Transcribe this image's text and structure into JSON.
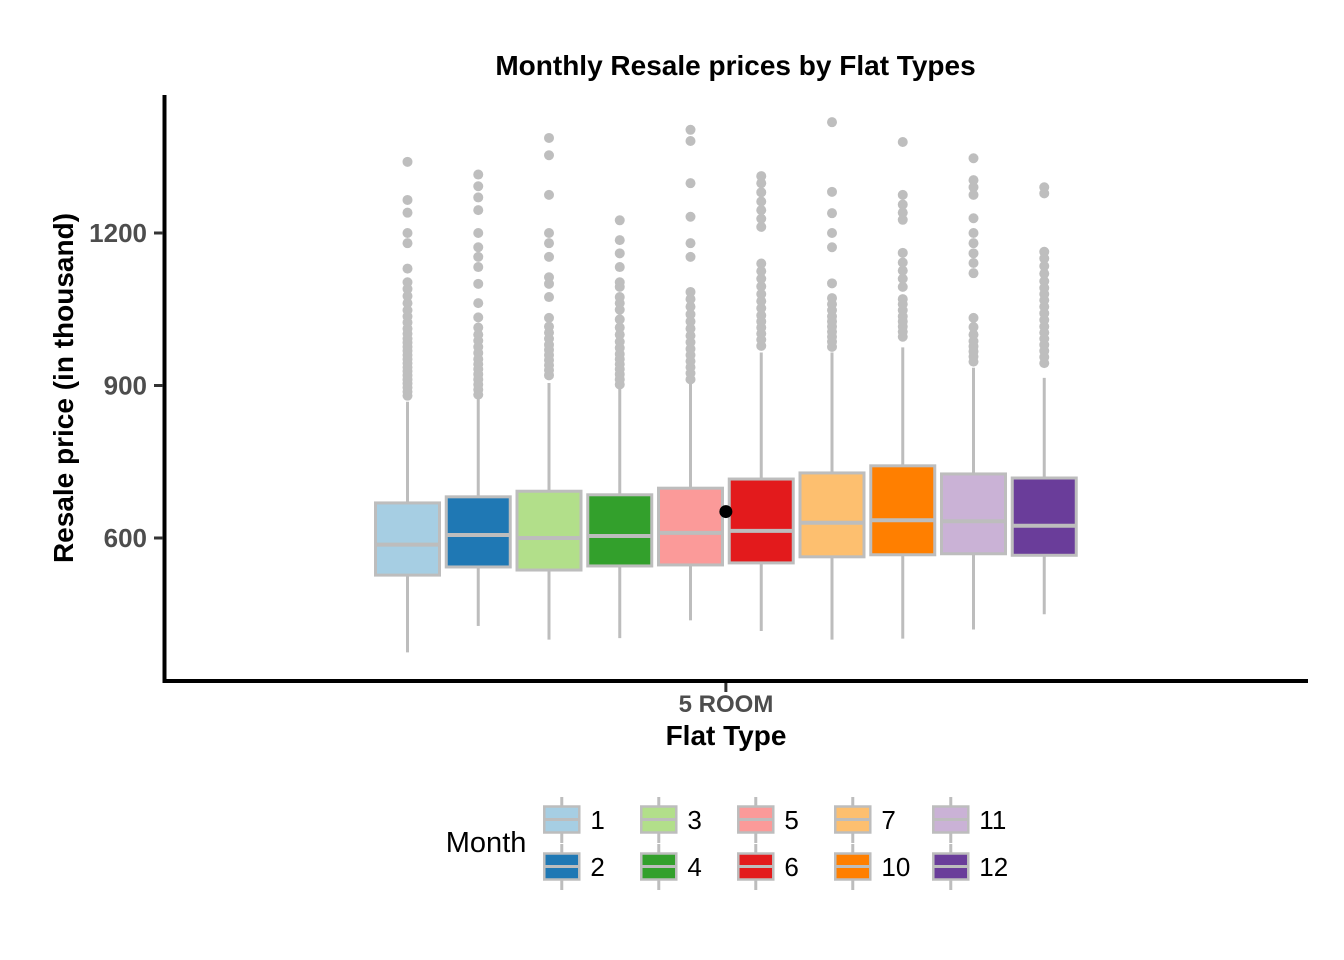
{
  "chart_data": {
    "type": "boxplot",
    "title": "Monthly Resale prices by Flat Types",
    "xlabel": "Flat Type",
    "ylabel": "Resale price (in thousand)",
    "x_category": "5 ROOM",
    "legend_title": "Month",
    "legend_position": "bottom",
    "grid": false,
    "yticks": [
      600,
      900,
      1200
    ],
    "ylim": [
      320,
      1470
    ],
    "styles": {
      "box_border": "#BDBDBD",
      "whisker": "#BDBDBD",
      "median": "#BDBDBD",
      "outlier": "#BEBEBE",
      "axis_line": "#000000",
      "tick_mark": "#333333",
      "tick_text": "#4D4D4D",
      "title_text": "#000000",
      "annotation_point_color": "#000000",
      "background": "#FFFFFF"
    },
    "annotation_point": {
      "between_months": [
        "5",
        "6"
      ],
      "value": 652
    },
    "series": [
      {
        "month": "1",
        "color": "#A6CEE3",
        "min": 375,
        "q1": 527,
        "median": 587,
        "q3": 669,
        "whisker_high": 868,
        "outliers": [
          880,
          888,
          896,
          904,
          912,
          920,
          928,
          936,
          944,
          952,
          960,
          968,
          976,
          984,
          992,
          1002,
          1012,
          1024,
          1036,
          1048,
          1062,
          1076,
          1090,
          1103,
          1130,
          1180,
          1200,
          1240,
          1265,
          1340
        ]
      },
      {
        "month": "2",
        "color": "#1F78B4",
        "min": 427,
        "q1": 543,
        "median": 606,
        "q3": 681,
        "whisker_high": 875,
        "outliers": [
          882,
          892,
          902,
          912,
          922,
          932,
          942,
          952,
          964,
          976,
          988,
          1000,
          1014,
          1034,
          1062,
          1100,
          1133,
          1153,
          1172,
          1200,
          1245,
          1270,
          1292,
          1315
        ]
      },
      {
        "month": "3",
        "color": "#B2DF8A",
        "min": 400,
        "q1": 537,
        "median": 600,
        "q3": 692,
        "whisker_high": 905,
        "outliers": [
          920,
          930,
          940,
          950,
          960,
          970,
          980,
          992,
          1004,
          1016,
          1033,
          1074,
          1100,
          1113,
          1153,
          1180,
          1200,
          1275,
          1353,
          1387
        ]
      },
      {
        "month": "4",
        "color": "#33A02C",
        "min": 403,
        "q1": 545,
        "median": 604,
        "q3": 685,
        "whisker_high": 895,
        "outliers": [
          902,
          912,
          922,
          932,
          942,
          952,
          962,
          974,
          986,
          1000,
          1014,
          1030,
          1049,
          1062,
          1074,
          1094,
          1103,
          1133,
          1160,
          1186,
          1225
        ]
      },
      {
        "month": "5",
        "color": "#FB9A99",
        "min": 438,
        "q1": 547,
        "median": 610,
        "q3": 698,
        "whisker_high": 905,
        "outliers": [
          912,
          924,
          936,
          948,
          960,
          972,
          985,
          998,
          1012,
          1026,
          1040,
          1055,
          1070,
          1084,
          1153,
          1180,
          1232,
          1298,
          1381,
          1403
        ]
      },
      {
        "month": "6",
        "color": "#E31A1C",
        "min": 417,
        "q1": 551,
        "median": 614,
        "q3": 716,
        "whisker_high": 965,
        "outliers": [
          978,
          990,
          1002,
          1014,
          1026,
          1038,
          1052,
          1066,
          1080,
          1095,
          1110,
          1125,
          1140,
          1212,
          1228,
          1245,
          1262,
          1280,
          1298,
          1312
        ]
      },
      {
        "month": "7",
        "color": "#FDBF6F",
        "min": 400,
        "q1": 563,
        "median": 630,
        "q3": 728,
        "whisker_high": 965,
        "outliers": [
          976,
          986,
          996,
          1006,
          1016,
          1026,
          1036,
          1048,
          1060,
          1072,
          1101,
          1172,
          1200,
          1239,
          1281,
          1418
        ]
      },
      {
        "month": "10",
        "color": "#FF7F00",
        "min": 402,
        "q1": 567,
        "median": 635,
        "q3": 742,
        "whisker_high": 975,
        "outliers": [
          996,
          1006,
          1016,
          1026,
          1036,
          1048,
          1060,
          1070,
          1094,
          1110,
          1126,
          1142,
          1161,
          1226,
          1240,
          1256,
          1275,
          1379
        ]
      },
      {
        "month": "11",
        "color": "#CAB2D6",
        "min": 420,
        "q1": 569,
        "median": 633,
        "q3": 726,
        "whisker_high": 935,
        "outliers": [
          947,
          957,
          967,
          977,
          987,
          1000,
          1015,
          1033,
          1121,
          1141,
          1160,
          1180,
          1200,
          1229,
          1275,
          1290,
          1304,
          1347
        ]
      },
      {
        "month": "12",
        "color": "#6A3D9A",
        "min": 450,
        "q1": 566,
        "median": 624,
        "q3": 718,
        "whisker_high": 915,
        "outliers": [
          944,
          956,
          968,
          980,
          992,
          1004,
          1016,
          1029,
          1042,
          1055,
          1068,
          1080,
          1092,
          1105,
          1120,
          1135,
          1150,
          1163,
          1278,
          1290
        ]
      }
    ]
  }
}
